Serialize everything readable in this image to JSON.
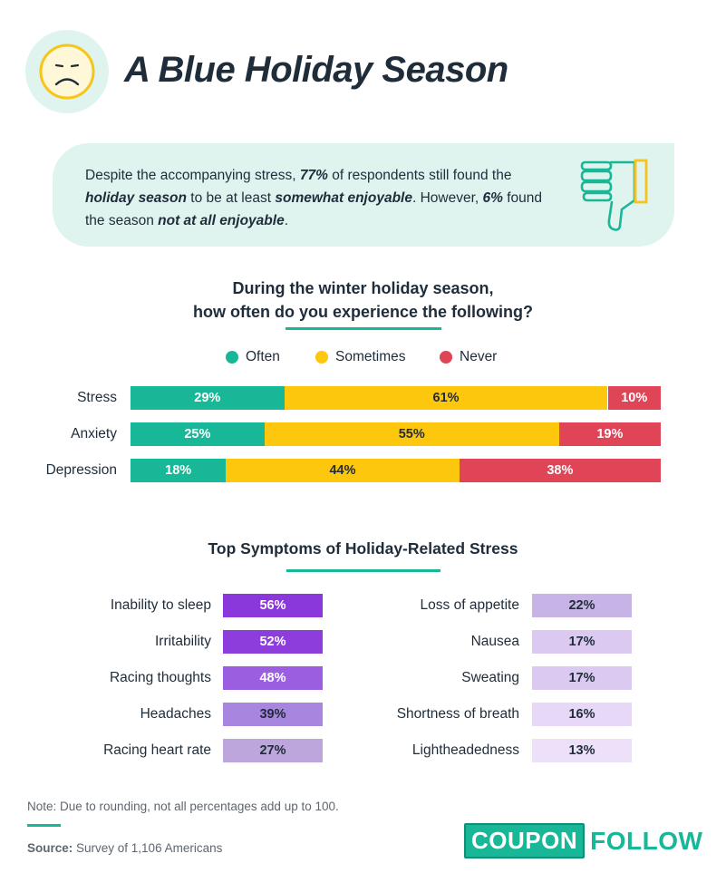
{
  "header": {
    "title": "A Blue Holiday Season",
    "icon": "sad-face-icon"
  },
  "intro": {
    "t1": "Despite the accompanying stress, ",
    "b1": "77%",
    "t2": " of respondents still found the ",
    "b2": "holiday season",
    "t3": " to be at least ",
    "b3": "somewhat enjoyable",
    "t4": ". However, ",
    "b4": "6%",
    "t5": " found the season ",
    "b5": "not at all enjoyable",
    "t6": ".",
    "icon": "thumbs-down-icon"
  },
  "colors": {
    "often": "#18b797",
    "sometimes": "#fdc70d",
    "never": "#df4556",
    "accent": "#18b797",
    "bg_tint": "#dff3ef",
    "symptom_left": [
      "#8a38dc",
      "#8e3ddd",
      "#9b5ee1",
      "#a885de",
      "#bda6dc"
    ],
    "symptom_right": [
      "#c8b3e6",
      "#dcc9f2",
      "#dcc9f2",
      "#e6d8f6",
      "#ece1f9"
    ]
  },
  "chart_data": [
    {
      "type": "bar",
      "orientation": "horizontal",
      "stacked": true,
      "title": "During the winter holiday season, how often do you experience the following?",
      "title_line1": "During the winter holiday season,",
      "title_line2": "how often do you experience the following?",
      "categories": [
        "Stress",
        "Anxiety",
        "Depression"
      ],
      "series": [
        {
          "name": "Often",
          "values": [
            29,
            25,
            18
          ],
          "labels": [
            "29%",
            "25%",
            "18%"
          ]
        },
        {
          "name": "Sometimes",
          "values": [
            61,
            55,
            44
          ],
          "labels": [
            "61%",
            "55%",
            "44%"
          ]
        },
        {
          "name": "Never",
          "values": [
            10,
            19,
            38
          ],
          "labels": [
            "10%",
            "19%",
            "38%"
          ]
        }
      ],
      "legend": "top"
    },
    {
      "type": "table",
      "title": "Top Symptoms of Holiday-Related Stress",
      "left": [
        {
          "label": "Inability to sleep",
          "value": 56,
          "text": "56%"
        },
        {
          "label": "Irritability",
          "value": 52,
          "text": "52%"
        },
        {
          "label": "Racing thoughts",
          "value": 48,
          "text": "48%"
        },
        {
          "label": "Headaches",
          "value": 39,
          "text": "39%"
        },
        {
          "label": "Racing heart rate",
          "value": 27,
          "text": "27%"
        }
      ],
      "right": [
        {
          "label": "Loss of appetite",
          "value": 22,
          "text": "22%"
        },
        {
          "label": "Nausea",
          "value": 17,
          "text": "17%"
        },
        {
          "label": "Sweating",
          "value": 17,
          "text": "17%"
        },
        {
          "label": "Shortness of breath",
          "value": 16,
          "text": "16%"
        },
        {
          "label": "Lightheadedness",
          "value": 13,
          "text": "13%"
        }
      ]
    }
  ],
  "footer": {
    "note": "Note: Due to rounding, not all percentages add up to 100.",
    "source_label": "Source:",
    "source_text": " Survey of 1,106 Americans",
    "logo_part1": "COUPON",
    "logo_part2": "FOLLOW"
  }
}
